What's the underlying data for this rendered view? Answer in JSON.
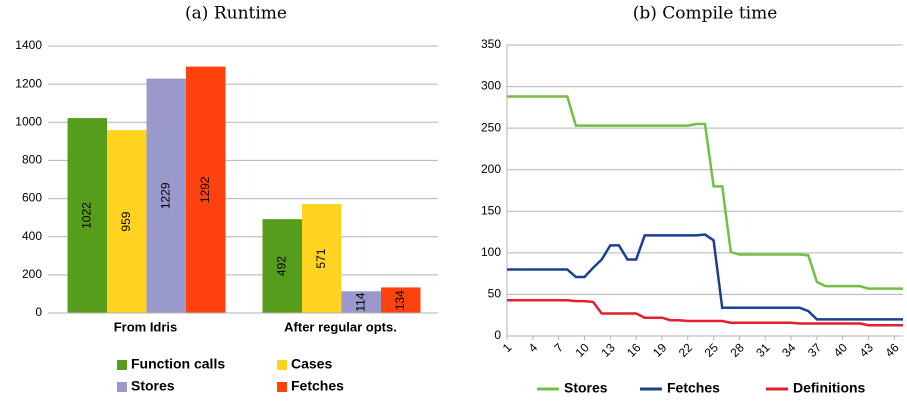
{
  "chart_data": [
    {
      "type": "bar",
      "title": "(a) Runtime",
      "categories": [
        "From Idris",
        "After regular opts."
      ],
      "series": [
        {
          "name": "Function calls",
          "color": "#579d1c",
          "values": [
            1022,
            492
          ]
        },
        {
          "name": "Cases",
          "color": "#ffd320",
          "values": [
            959,
            571
          ]
        },
        {
          "name": "Stores",
          "color": "#9999cc",
          "values": [
            1229,
            114
          ]
        },
        {
          "name": "Fetches",
          "color": "#ff420e",
          "values": [
            1292,
            134
          ]
        }
      ],
      "ylim": [
        0,
        1400
      ],
      "yticks": [
        0,
        200,
        400,
        600,
        800,
        1000,
        1200,
        1400
      ],
      "grid": true,
      "legend": "bottom"
    },
    {
      "type": "line",
      "title": "(b) Compile time",
      "x": [
        1,
        2,
        3,
        4,
        5,
        6,
        7,
        8,
        9,
        10,
        11,
        12,
        13,
        14,
        15,
        16,
        17,
        18,
        19,
        20,
        21,
        22,
        23,
        24,
        25,
        26,
        27,
        28,
        29,
        30,
        31,
        32,
        33,
        34,
        35,
        36,
        37,
        38,
        39,
        40,
        41,
        42,
        43,
        44,
        45,
        46,
        47
      ],
      "series": [
        {
          "name": "Stores",
          "color": "#72bf44",
          "values": [
            288,
            288,
            288,
            288,
            288,
            288,
            288,
            288,
            253,
            253,
            253,
            253,
            253,
            253,
            253,
            253,
            253,
            253,
            253,
            253,
            253,
            253,
            255,
            255,
            180,
            180,
            101,
            98,
            98,
            98,
            98,
            98,
            98,
            98,
            98,
            97,
            65,
            60,
            60,
            60,
            60,
            60,
            57,
            57,
            57,
            57,
            57
          ]
        },
        {
          "name": "Fetches",
          "color": "#1c3f94",
          "values": [
            80,
            80,
            80,
            80,
            80,
            80,
            80,
            80,
            71,
            71,
            82,
            92,
            109,
            109,
            92,
            92,
            121,
            121,
            121,
            121,
            121,
            121,
            121,
            122,
            115,
            34,
            34,
            34,
            34,
            34,
            34,
            34,
            34,
            34,
            34,
            30,
            20,
            20,
            20,
            20,
            20,
            20,
            20,
            20,
            20,
            20,
            20
          ]
        },
        {
          "name": "Definitions",
          "color": "#e0202f",
          "values": [
            43,
            43,
            43,
            43,
            43,
            43,
            43,
            43,
            42,
            42,
            41,
            27,
            27,
            27,
            27,
            27,
            22,
            22,
            22,
            19,
            19,
            18,
            18,
            18,
            18,
            18,
            16,
            16,
            16,
            16,
            16,
            16,
            16,
            16,
            15,
            15,
            15,
            15,
            15,
            15,
            15,
            15,
            13,
            13,
            13,
            13,
            13
          ]
        }
      ],
      "xlim": [
        1,
        47
      ],
      "xticks": [
        1,
        4,
        7,
        10,
        13,
        16,
        19,
        22,
        25,
        28,
        31,
        34,
        37,
        40,
        43,
        46
      ],
      "ylim": [
        0,
        350
      ],
      "yticks": [
        0,
        50,
        100,
        150,
        200,
        250,
        300,
        350
      ],
      "grid": true,
      "legend": "bottom"
    }
  ]
}
